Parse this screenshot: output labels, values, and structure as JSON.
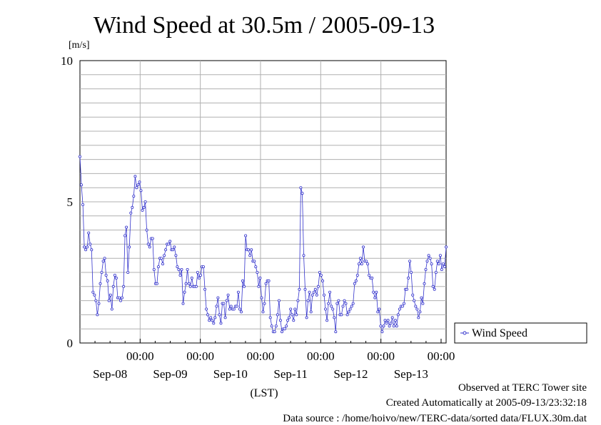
{
  "chart_data": {
    "type": "line",
    "title": "Wind Speed at 30.5m / 2005-09-13",
    "ylabel": "[m/s]",
    "xlabel": "(LST)",
    "ylim": [
      0,
      10
    ],
    "yticks": [
      "0",
      "5",
      "10"
    ],
    "xlim_hours": [
      0,
      146
    ],
    "time_labels": [
      "00:00",
      "00:00",
      "00:00",
      "00:00",
      "00:00",
      "00:00"
    ],
    "date_labels": [
      "Sep-08",
      "Sep-09",
      "Sep-10",
      "Sep-11",
      "Sep-12",
      "Sep-13"
    ],
    "grid": true,
    "legend_position": "right",
    "series": [
      {
        "name": "Wind Speed",
        "color": "#3333cc",
        "values": [
          6.6,
          5.6,
          4.9,
          3.4,
          3.3,
          3.4,
          3.9,
          3.5,
          3.3,
          1.8,
          1.7,
          1.5,
          1.0,
          1.4,
          2.1,
          2.5,
          2.9,
          3.0,
          2.4,
          2.2,
          1.5,
          1.7,
          1.2,
          2.0,
          2.4,
          2.3,
          1.6,
          1.6,
          1.5,
          1.6,
          2.0,
          3.8,
          4.1,
          2.5,
          3.4,
          4.6,
          4.8,
          5.2,
          5.9,
          5.5,
          5.6,
          5.7,
          5.4,
          4.7,
          4.8,
          5.0,
          4.0,
          3.5,
          3.4,
          3.7,
          3.7,
          2.6,
          2.1,
          2.1,
          2.7,
          3.0,
          3.0,
          2.8,
          3.1,
          3.3,
          3.5,
          3.5,
          3.6,
          3.3,
          3.3,
          3.4,
          3.1,
          2.7,
          2.6,
          2.4,
          2.6,
          1.4,
          1.8,
          2.1,
          2.6,
          2.1,
          2.0,
          2.3,
          2.0,
          2.0,
          2.0,
          2.5,
          2.3,
          2.4,
          2.7,
          2.7,
          1.9,
          1.2,
          1.0,
          0.8,
          0.9,
          0.8,
          0.7,
          0.9,
          1.3,
          1.6,
          1.0,
          0.7,
          1.4,
          1.4,
          0.9,
          1.5,
          1.7,
          1.2,
          1.3,
          1.2,
          1.2,
          1.3,
          1.3,
          1.8,
          1.2,
          1.1,
          2.2,
          2.0,
          3.8,
          3.3,
          3.3,
          3.1,
          3.3,
          2.9,
          2.9,
          2.7,
          2.5,
          2.0,
          2.3,
          1.6,
          1.1,
          1.4,
          2.1,
          2.2,
          2.2,
          0.9,
          0.6,
          0.4,
          0.4,
          0.6,
          1.0,
          1.5,
          0.8,
          0.4,
          0.5,
          0.5,
          0.6,
          0.8,
          0.9,
          1.2,
          1.0,
          0.8,
          1.2,
          1.0,
          1.5,
          1.9,
          5.5,
          5.3,
          3.1,
          1.9,
          0.9,
          1.5,
          1.8,
          1.1,
          1.7,
          1.8,
          1.9,
          1.7,
          2.0,
          2.5,
          2.4,
          2.2,
          1.7,
          1.2,
          0.8,
          1.4,
          1.8,
          1.3,
          1.2,
          0.9,
          0.4,
          1.4,
          1.5,
          1.0,
          1.0,
          1.3,
          1.5,
          1.4,
          1.0,
          1.1,
          1.2,
          1.3,
          1.4,
          2.1,
          2.2,
          2.4,
          2.8,
          3.0,
          2.8,
          3.4,
          2.9,
          2.9,
          2.8,
          2.4,
          2.3,
          2.3,
          1.8,
          1.6,
          1.8,
          1.1,
          1.2,
          0.6,
          0.4,
          0.6,
          0.8,
          0.7,
          0.8,
          0.6,
          0.7,
          0.9,
          0.6,
          0.8,
          0.6,
          1.0,
          1.2,
          1.3,
          1.3,
          1.4,
          1.9,
          1.9,
          2.3,
          2.9,
          2.5,
          1.7,
          1.5,
          1.3,
          1.2,
          0.9,
          1.1,
          1.6,
          1.4,
          2.1,
          2.6,
          2.9,
          3.1,
          3.0,
          2.8,
          2.0,
          1.9,
          2.5,
          2.9,
          2.8,
          3.1,
          2.6,
          2.8,
          2.7,
          3.4
        ]
      }
    ]
  },
  "footer": {
    "site": "Observed at TERC Tower site",
    "created": "Created Automatically at 2005-09-13/23:32:18",
    "source": "Data source : /home/hoivo/new/TERC-data/sorted  data/FLUX.30m.dat"
  }
}
